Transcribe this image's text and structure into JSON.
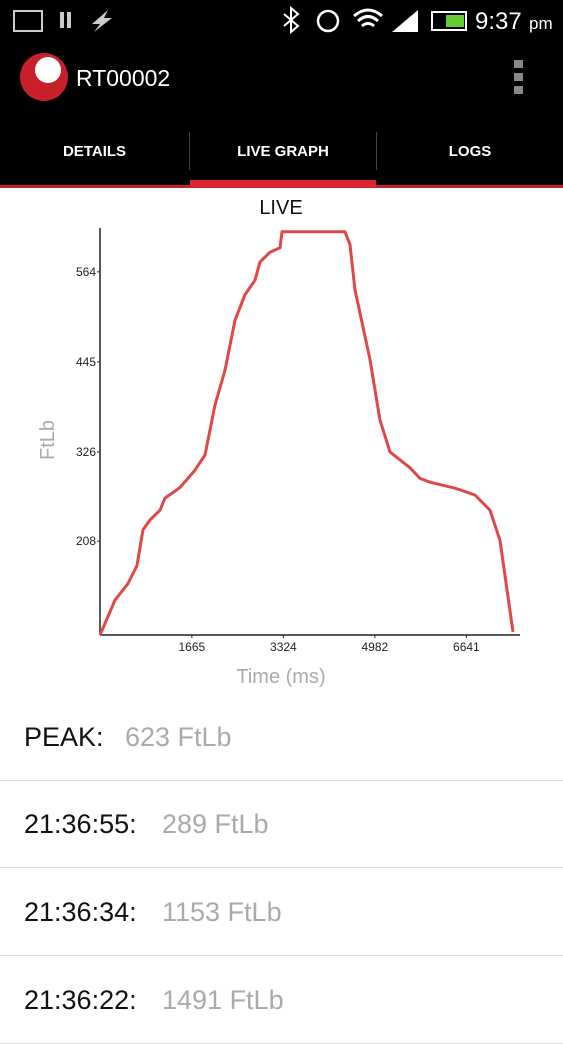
{
  "status_bar": {
    "time": "9:37",
    "ampm": "pm"
  },
  "app_bar": {
    "title": "RT00002"
  },
  "tabs": [
    "DETAILS",
    "LIVE GRAPH",
    "LOGS"
  ],
  "chart_data": {
    "type": "line",
    "title": "LIVE",
    "x_label": "Time (ms)",
    "y_label": "FtLb",
    "x": [
      0,
      272,
      508,
      671,
      779,
      906,
      1088,
      1178,
      1450,
      1722,
      1903,
      1994,
      2084,
      2266,
      2447,
      2628,
      2810,
      2900,
      3081,
      3263,
      3299,
      3625,
      4441,
      4532,
      4622,
      4894,
      5075,
      5256,
      5619,
      5800,
      5981,
      6435,
      6797,
      7069,
      7250,
      7486
    ],
    "values": [
      84,
      130,
      152,
      176,
      223,
      236,
      249,
      265,
      279,
      302,
      322,
      355,
      388,
      434,
      500,
      534,
      553,
      577,
      590,
      596,
      617,
      617,
      617,
      600,
      540,
      448,
      368,
      326,
      305,
      291,
      286,
      278,
      269,
      249,
      209,
      88
    ],
    "color": "#e04848",
    "xlim": [
      0,
      7613
    ],
    "xticks": [
      1665,
      3324,
      4982,
      6641
    ],
    "ylim": [
      84,
      622
    ],
    "yticks": [
      208,
      326,
      445,
      564
    ]
  },
  "readings": [
    {
      "label": "PEAK:",
      "value": "623 FtLb"
    },
    {
      "label": "21:36:55:",
      "value": "289 FtLb"
    },
    {
      "label": "21:36:34:",
      "value": "1153 FtLb"
    },
    {
      "label": "21:36:22:",
      "value": "1491 FtLb"
    }
  ]
}
